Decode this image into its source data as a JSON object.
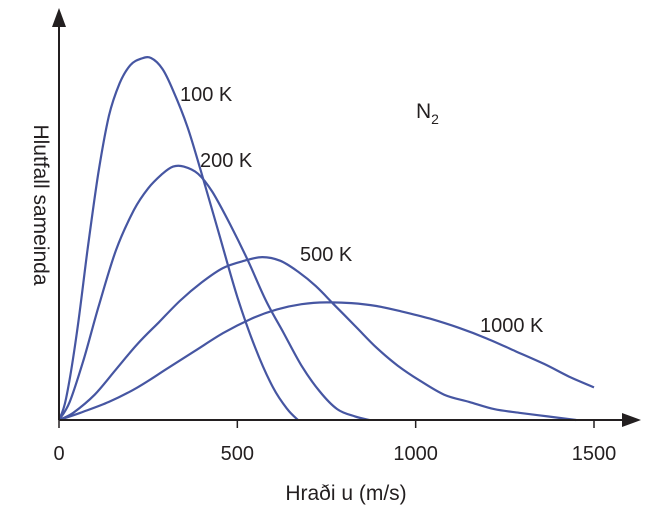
{
  "chart_data": {
    "type": "line",
    "title": "",
    "annotation": {
      "base": "N",
      "subscript": "2"
    },
    "xlabel": "Hraði u (m/s)",
    "ylabel": "Hlutfall sameinda",
    "xlim": [
      0,
      1500
    ],
    "ylim": [
      0,
      1
    ],
    "x_ticks": [
      {
        "value": 0,
        "label": "0"
      },
      {
        "value": 500,
        "label": "500"
      },
      {
        "value": 1000,
        "label": "1000"
      },
      {
        "value": 1500,
        "label": "1500"
      }
    ],
    "y_ticks": [],
    "grid": false,
    "line_color": "#4656a2",
    "series": [
      {
        "name": "100 K",
        "points": [
          [
            0,
            0
          ],
          [
            20,
            0.06
          ],
          [
            50,
            0.24
          ],
          [
            80,
            0.47
          ],
          [
            110,
            0.68
          ],
          [
            140,
            0.84
          ],
          [
            170,
            0.93
          ],
          [
            200,
            0.98
          ],
          [
            230,
            0.998
          ],
          [
            258,
            1.0
          ],
          [
            290,
            0.97
          ],
          [
            320,
            0.91
          ],
          [
            360,
            0.81
          ],
          [
            400,
            0.68
          ],
          [
            450,
            0.51
          ],
          [
            500,
            0.34
          ],
          [
            550,
            0.2
          ],
          [
            600,
            0.09
          ],
          [
            640,
            0.03
          ],
          [
            670,
            0.0
          ]
        ]
      },
      {
        "name": "200 K",
        "points": [
          [
            0,
            0
          ],
          [
            30,
            0.05
          ],
          [
            70,
            0.17
          ],
          [
            110,
            0.31
          ],
          [
            160,
            0.47
          ],
          [
            210,
            0.58
          ],
          [
            250,
            0.64
          ],
          [
            290,
            0.68
          ],
          [
            320,
            0.7
          ],
          [
            350,
            0.7
          ],
          [
            390,
            0.68
          ],
          [
            430,
            0.63
          ],
          [
            480,
            0.54
          ],
          [
            530,
            0.44
          ],
          [
            580,
            0.33
          ],
          [
            630,
            0.24
          ],
          [
            680,
            0.15
          ],
          [
            730,
            0.08
          ],
          [
            780,
            0.03
          ],
          [
            830,
            0.01
          ],
          [
            870,
            0.0
          ]
        ]
      },
      {
        "name": "500 K",
        "points": [
          [
            0,
            0
          ],
          [
            40,
            0.02
          ],
          [
            100,
            0.07
          ],
          [
            160,
            0.14
          ],
          [
            220,
            0.21
          ],
          [
            280,
            0.27
          ],
          [
            340,
            0.33
          ],
          [
            400,
            0.38
          ],
          [
            460,
            0.42
          ],
          [
            520,
            0.44
          ],
          [
            570,
            0.45
          ],
          [
            620,
            0.44
          ],
          [
            670,
            0.41
          ],
          [
            720,
            0.37
          ],
          [
            770,
            0.32
          ],
          [
            830,
            0.26
          ],
          [
            890,
            0.2
          ],
          [
            950,
            0.15
          ],
          [
            1010,
            0.11
          ],
          [
            1080,
            0.07
          ],
          [
            1150,
            0.05
          ],
          [
            1220,
            0.03
          ],
          [
            1290,
            0.02
          ],
          [
            1370,
            0.01
          ],
          [
            1450,
            0.0
          ]
        ]
      },
      {
        "name": "1000 K",
        "points": [
          [
            0,
            0
          ],
          [
            60,
            0.02
          ],
          [
            140,
            0.05
          ],
          [
            220,
            0.09
          ],
          [
            300,
            0.14
          ],
          [
            380,
            0.19
          ],
          [
            460,
            0.24
          ],
          [
            540,
            0.28
          ],
          [
            610,
            0.305
          ],
          [
            680,
            0.32
          ],
          [
            750,
            0.325
          ],
          [
            820,
            0.323
          ],
          [
            890,
            0.315
          ],
          [
            960,
            0.3
          ],
          [
            1040,
            0.28
          ],
          [
            1120,
            0.255
          ],
          [
            1200,
            0.225
          ],
          [
            1280,
            0.19
          ],
          [
            1360,
            0.155
          ],
          [
            1430,
            0.12
          ],
          [
            1500,
            0.09
          ]
        ]
      }
    ]
  }
}
